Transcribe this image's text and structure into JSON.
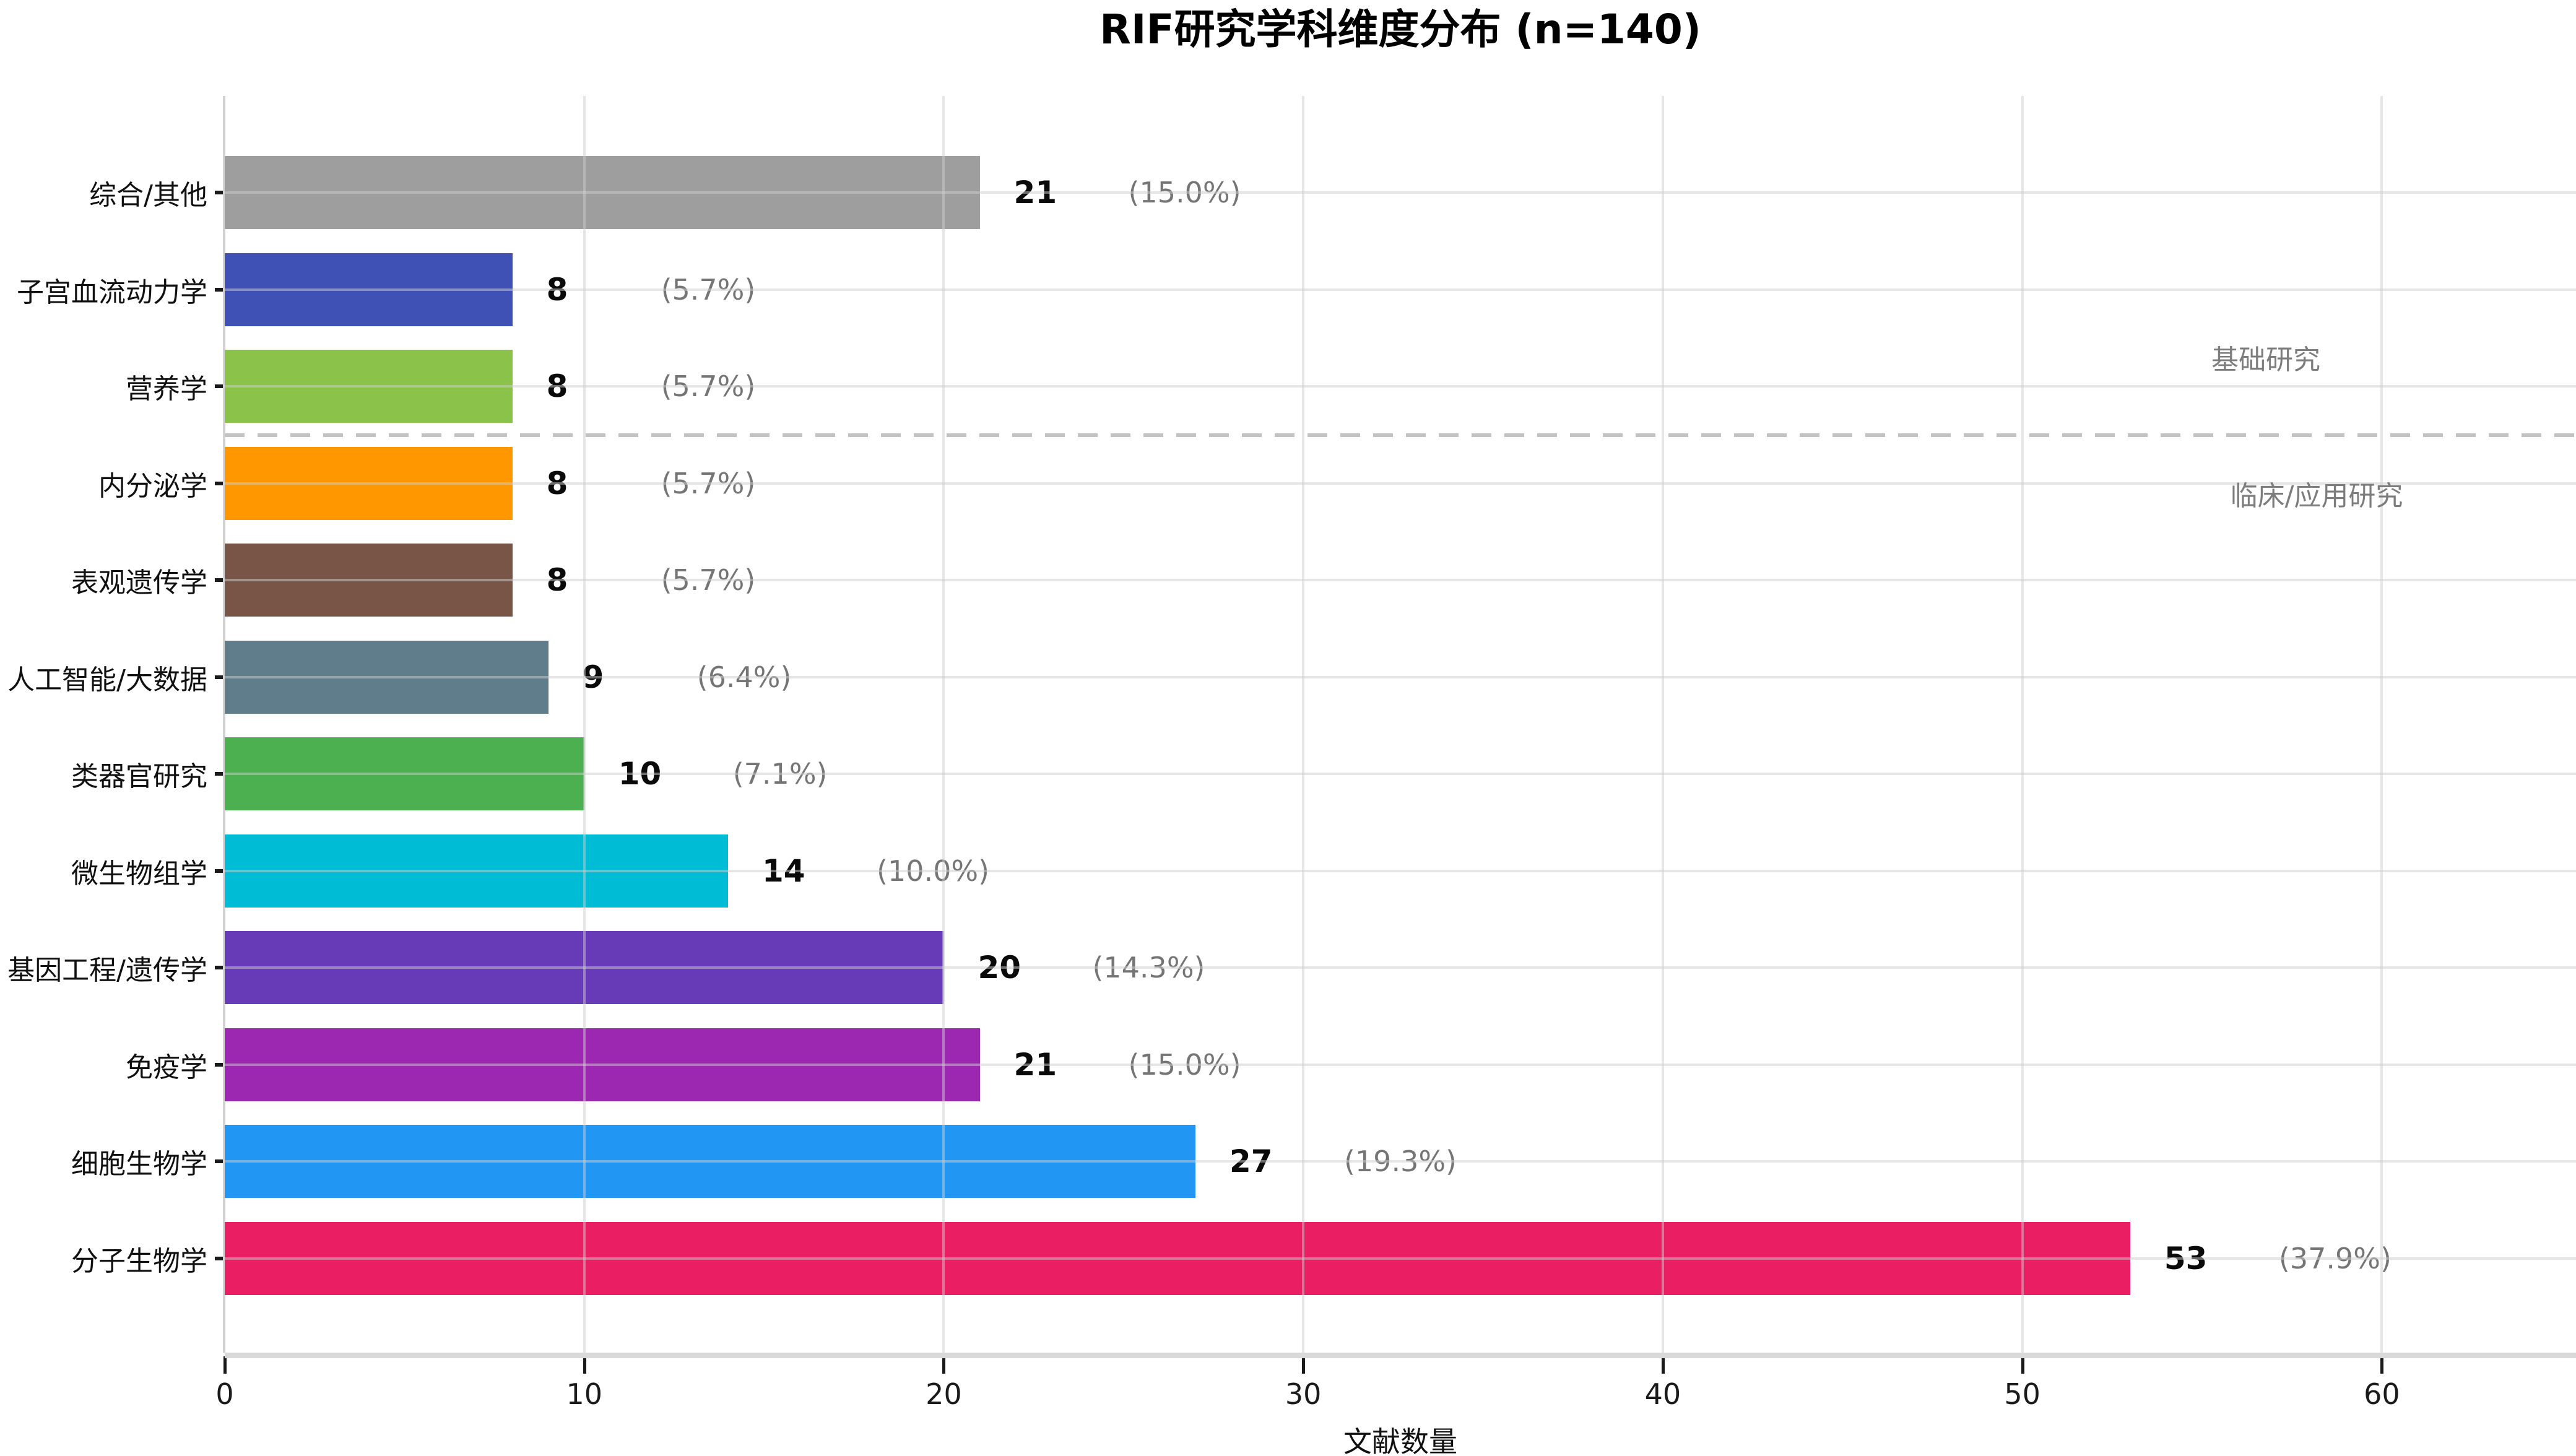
{
  "title": "RIF研究学科维度分布 (n=140)",
  "chart_data": {
    "type": "bar",
    "orientation": "horizontal",
    "title": "RIF研究学科维度分布 (n=140)",
    "total_n": 140,
    "xlabel": "文献数量",
    "ylabel": "",
    "x_ticks": [
      0,
      10,
      20,
      30,
      40,
      50,
      60
    ],
    "xlim": [
      0,
      65.4
    ],
    "grid": true,
    "rows_top_to_bottom": [
      {
        "category": "综合/其他",
        "value": 21,
        "pct_label": "(15.0%)",
        "color": "#9E9E9E"
      },
      {
        "category": "子宫血流动力学",
        "value": 8,
        "pct_label": "(5.7%)",
        "color": "#3F51B5"
      },
      {
        "category": "营养学",
        "value": 8,
        "pct_label": "(5.7%)",
        "color": "#8BC34A"
      },
      {
        "category": "内分泌学",
        "value": 8,
        "pct_label": "(5.7%)",
        "color": "#FF9800"
      },
      {
        "category": "表观遗传学",
        "value": 8,
        "pct_label": "(5.7%)",
        "color": "#795548"
      },
      {
        "category": "人工智能/大数据",
        "value": 9,
        "pct_label": "(6.4%)",
        "color": "#607D8B"
      },
      {
        "category": "类器官研究",
        "value": 10,
        "pct_label": "(7.1%)",
        "color": "#4CAF50"
      },
      {
        "category": "微生物组学",
        "value": 14,
        "pct_label": "(10.0%)",
        "color": "#00BCD4"
      },
      {
        "category": "基因工程/遗传学",
        "value": 20,
        "pct_label": "(14.3%)",
        "color": "#673AB7"
      },
      {
        "category": "免疫学",
        "value": 21,
        "pct_label": "(15.0%)",
        "color": "#9C27B0"
      },
      {
        "category": "细胞生物学",
        "value": 27,
        "pct_label": "(19.3%)",
        "color": "#2196F3"
      },
      {
        "category": "分子生物学",
        "value": 53,
        "pct_label": "(37.9%)",
        "color": "#E91E63"
      }
    ],
    "divider": {
      "style": "dashed",
      "between_categories": [
        "营养学",
        "内分泌学"
      ],
      "label_above": "基础研究",
      "label_below": "临床/应用研究"
    },
    "annotations": {
      "upper": "基础研究",
      "lower": "临床/应用研究"
    },
    "colors": {
      "axis_spine": "#d9d9d9",
      "gridline": "#cdcdcd",
      "value_label": "#0a0a0a",
      "percent_label": "#757575",
      "annotation_text": "#7d7d7d",
      "divider_dash": "#c3c3c3"
    }
  }
}
